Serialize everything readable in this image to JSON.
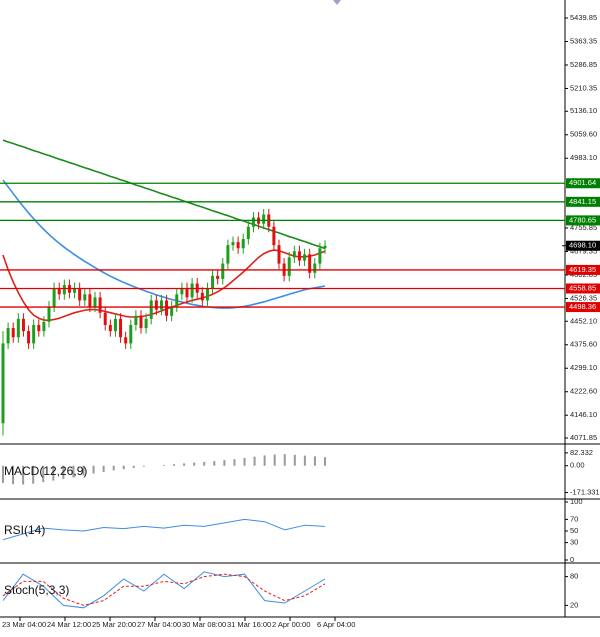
{
  "chart_data": [
    {
      "type": "candlestick",
      "open": [
        4120,
        4380,
        4430,
        4400,
        4460,
        4420,
        4380,
        4440,
        4420,
        4450,
        4500,
        4560,
        4540,
        4570,
        4545,
        4560,
        4520,
        4540,
        4500,
        4530,
        4480,
        4440,
        4420,
        4460,
        4400,
        4380,
        4440,
        4470,
        4430,
        4460,
        4520,
        4490,
        4520,
        4470,
        4500,
        4540,
        4560,
        4530,
        4575,
        4545,
        4520,
        4560,
        4600,
        4590,
        4640,
        4700,
        4710,
        4690,
        4720,
        4760,
        4790,
        4770,
        4800,
        4760,
        4700,
        4640,
        4600,
        4660,
        4680,
        4650,
        4670,
        4610,
        4640,
        4690
      ],
      "high": [
        4420,
        4448,
        4448,
        4478,
        4478,
        4438,
        4458,
        4458,
        4468,
        4518,
        4578,
        4578,
        4588,
        4588,
        4578,
        4578,
        4558,
        4558,
        4548,
        4548,
        4498,
        4458,
        4478,
        4478,
        4418,
        4458,
        4488,
        4488,
        4478,
        4538,
        4538,
        4538,
        4538,
        4518,
        4558,
        4578,
        4578,
        4593,
        4593,
        4563,
        4578,
        4618,
        4618,
        4658,
        4718,
        4728,
        4728,
        4738,
        4778,
        4808,
        4808,
        4818,
        4818,
        4778,
        4718,
        4658,
        4678,
        4698,
        4698,
        4688,
        4688,
        4658,
        4708,
        4716
      ],
      "low": [
        4080,
        4362,
        4382,
        4382,
        4402,
        4362,
        4362,
        4402,
        4402,
        4432,
        4482,
        4522,
        4522,
        4527,
        4527,
        4502,
        4502,
        4482,
        4482,
        4462,
        4422,
        4402,
        4402,
        4382,
        4362,
        4362,
        4422,
        4412,
        4412,
        4442,
        4472,
        4472,
        4452,
        4452,
        4482,
        4522,
        4512,
        4512,
        4527,
        4502,
        4502,
        4542,
        4572,
        4572,
        4622,
        4682,
        4672,
        4672,
        4702,
        4742,
        4752,
        4752,
        4742,
        4682,
        4622,
        4582,
        4582,
        4642,
        4632,
        4632,
        4592,
        4592,
        4622,
        4672
      ],
      "close": [
        4380,
        4430,
        4400,
        4460,
        4420,
        4380,
        4440,
        4420,
        4450,
        4500,
        4560,
        4540,
        4570,
        4545,
        4560,
        4520,
        4540,
        4500,
        4530,
        4480,
        4440,
        4420,
        4460,
        4400,
        4380,
        4440,
        4470,
        4430,
        4460,
        4520,
        4490,
        4520,
        4470,
        4500,
        4540,
        4560,
        4530,
        4575,
        4545,
        4520,
        4560,
        4600,
        4590,
        4640,
        4700,
        4710,
        4690,
        4720,
        4760,
        4790,
        4770,
        4800,
        4760,
        4700,
        4640,
        4600,
        4660,
        4680,
        4650,
        4670,
        4610,
        4640,
        4690,
        4698.1
      ],
      "up_color": "#1e9e1e",
      "down_color": "#e01010",
      "series": [
        {
          "color": "#1a8c1a",
          "values": [
            5042,
            5036,
            5031,
            5025,
            5020,
            5014,
            5008,
            5003,
            4997,
            4992,
            4986,
            4980,
            4975,
            4969,
            4964,
            4958,
            4952,
            4947,
            4941,
            4936,
            4930,
            4924,
            4919,
            4913,
            4908,
            4902,
            4896,
            4891,
            4885,
            4880,
            4874,
            4868,
            4863,
            4857,
            4852,
            4846,
            4840,
            4835,
            4829,
            4824,
            4818,
            4812,
            4807,
            4801,
            4796,
            4790,
            4784,
            4779,
            4773,
            4768,
            4762,
            4756,
            4751,
            4745,
            4740,
            4734,
            4728,
            4723,
            4717,
            4712,
            4706,
            4700,
            4695,
            4689
          ]
        },
        {
          "color": "#3c8ee6",
          "values": [
            4912,
            4890,
            4868,
            4846,
            4825,
            4805,
            4786,
            4768,
            4751,
            4735,
            4720,
            4706,
            4693,
            4681,
            4669,
            4658,
            4647,
            4637,
            4627,
            4617,
            4608,
            4599,
            4591,
            4583,
            4576,
            4569,
            4562,
            4556,
            4550,
            4544,
            4538,
            4533,
            4528,
            4523,
            4519,
            4515,
            4511,
            4507,
            4504,
            4501,
            4499,
            4497,
            4496,
            4495,
            4495,
            4496,
            4498,
            4500,
            4503,
            4507,
            4511,
            4515,
            4520,
            4525,
            4530,
            4535,
            4540,
            4545,
            4550,
            4555,
            4558,
            4561,
            4564,
            4567
          ]
        },
        {
          "color": "#e0201a",
          "values": [
            4668,
            4620,
            4580,
            4545,
            4515,
            4490,
            4472,
            4462,
            4456,
            4455,
            4458,
            4462,
            4468,
            4474,
            4480,
            4484,
            4488,
            4490,
            4490,
            4488,
            4484,
            4480,
            4476,
            4472,
            4468,
            4466,
            4466,
            4468,
            4470,
            4474,
            4480,
            4486,
            4492,
            4498,
            4504,
            4510,
            4515,
            4520,
            4524,
            4528,
            4533,
            4540,
            4548,
            4558,
            4570,
            4584,
            4598,
            4612,
            4628,
            4644,
            4660,
            4672,
            4680,
            4684,
            4682,
            4676,
            4670,
            4664,
            4662,
            4662,
            4664,
            4668,
            4674,
            4680
          ]
        }
      ],
      "levels": [
        {
          "value": 4901.64,
          "color": "#008000"
        },
        {
          "value": 4841.15,
          "color": "#008000"
        },
        {
          "value": 4780.65,
          "color": "#008000"
        },
        {
          "value": 4619.35,
          "color": "#e00000"
        },
        {
          "value": 4558.85,
          "color": "#e00000"
        },
        {
          "value": 4498.36,
          "color": "#e00000"
        }
      ],
      "last_price": {
        "value": 4698.1,
        "label": "4698.10"
      },
      "ylim": [
        4055.6,
        5498.5
      ],
      "yticks": [
        5439.85,
        5363.35,
        5286.85,
        5210.35,
        {
          "value": 5136.1,
          "label": "5136.10"
        },
        {
          "value": 5059.6,
          "label": "5059.60"
        },
        {
          "value": 4983.1,
          "label": "4983.10"
        },
        4755.85,
        4679.35,
        4602.85,
        4526.35,
        {
          "value": 4452.1,
          "label": "4452.10"
        },
        {
          "value": 4375.6,
          "label": "4375.60"
        },
        {
          "value": 4299.1,
          "label": "4299.10"
        },
        {
          "value": 4222.6,
          "label": "4222.60"
        },
        {
          "value": 4146.1,
          "label": "4146.10"
        },
        4071.85
      ],
      "x_labels": [
        "23 Mar 04:00",
        "24 Mar 12:00",
        "25 Mar 20:00",
        "27 Mar 04:00",
        "30 Mar 08:00",
        "31 Mar 16:00",
        "2 Apr 00:00",
        "6 Apr 04:00"
      ]
    },
    {
      "type": "bar",
      "title": "MACD(12,26,9)",
      "color": "#9a9a9a",
      "values": [
        -110,
        -118,
        -120,
        -115,
        -105,
        -95,
        -85,
        -75,
        -62,
        -50,
        -40,
        -30,
        -22,
        -14,
        -6,
        0,
        5,
        10,
        15,
        20,
        25,
        30,
        36,
        42,
        50,
        58,
        66,
        72,
        74,
        70,
        65,
        60,
        55
      ],
      "ylim": [
        -200,
        120
      ],
      "yticks": [
        82.332,
        {
          "value": 0,
          "label": "0.00"
        },
        -171.331
      ]
    },
    {
      "type": "line",
      "title": "RSI(14)",
      "series": [
        {
          "color": "#3c8ee6",
          "values": [
            35,
            45,
            55,
            52,
            50,
            56,
            54,
            58,
            55,
            60,
            58,
            64,
            70,
            66,
            52,
            60,
            58
          ]
        }
      ],
      "ylim": [
        0,
        100
      ],
      "yticks": [
        100,
        70,
        50,
        30,
        0
      ]
    },
    {
      "type": "line",
      "title": "Stoch(5,3,3)",
      "series": [
        {
          "color": "#3c8ee6",
          "values": [
            30,
            85,
            60,
            20,
            15,
            40,
            75,
            50,
            85,
            55,
            90,
            80,
            85,
            30,
            25,
            50,
            75
          ]
        },
        {
          "color": "#e0201a",
          "dashed": true,
          "values": [
            40,
            70,
            70,
            35,
            20,
            30,
            60,
            60,
            70,
            65,
            80,
            85,
            80,
            50,
            30,
            40,
            65
          ]
        }
      ],
      "ylim": [
        0,
        100
      ],
      "yticks": [
        80,
        20
      ]
    }
  ]
}
